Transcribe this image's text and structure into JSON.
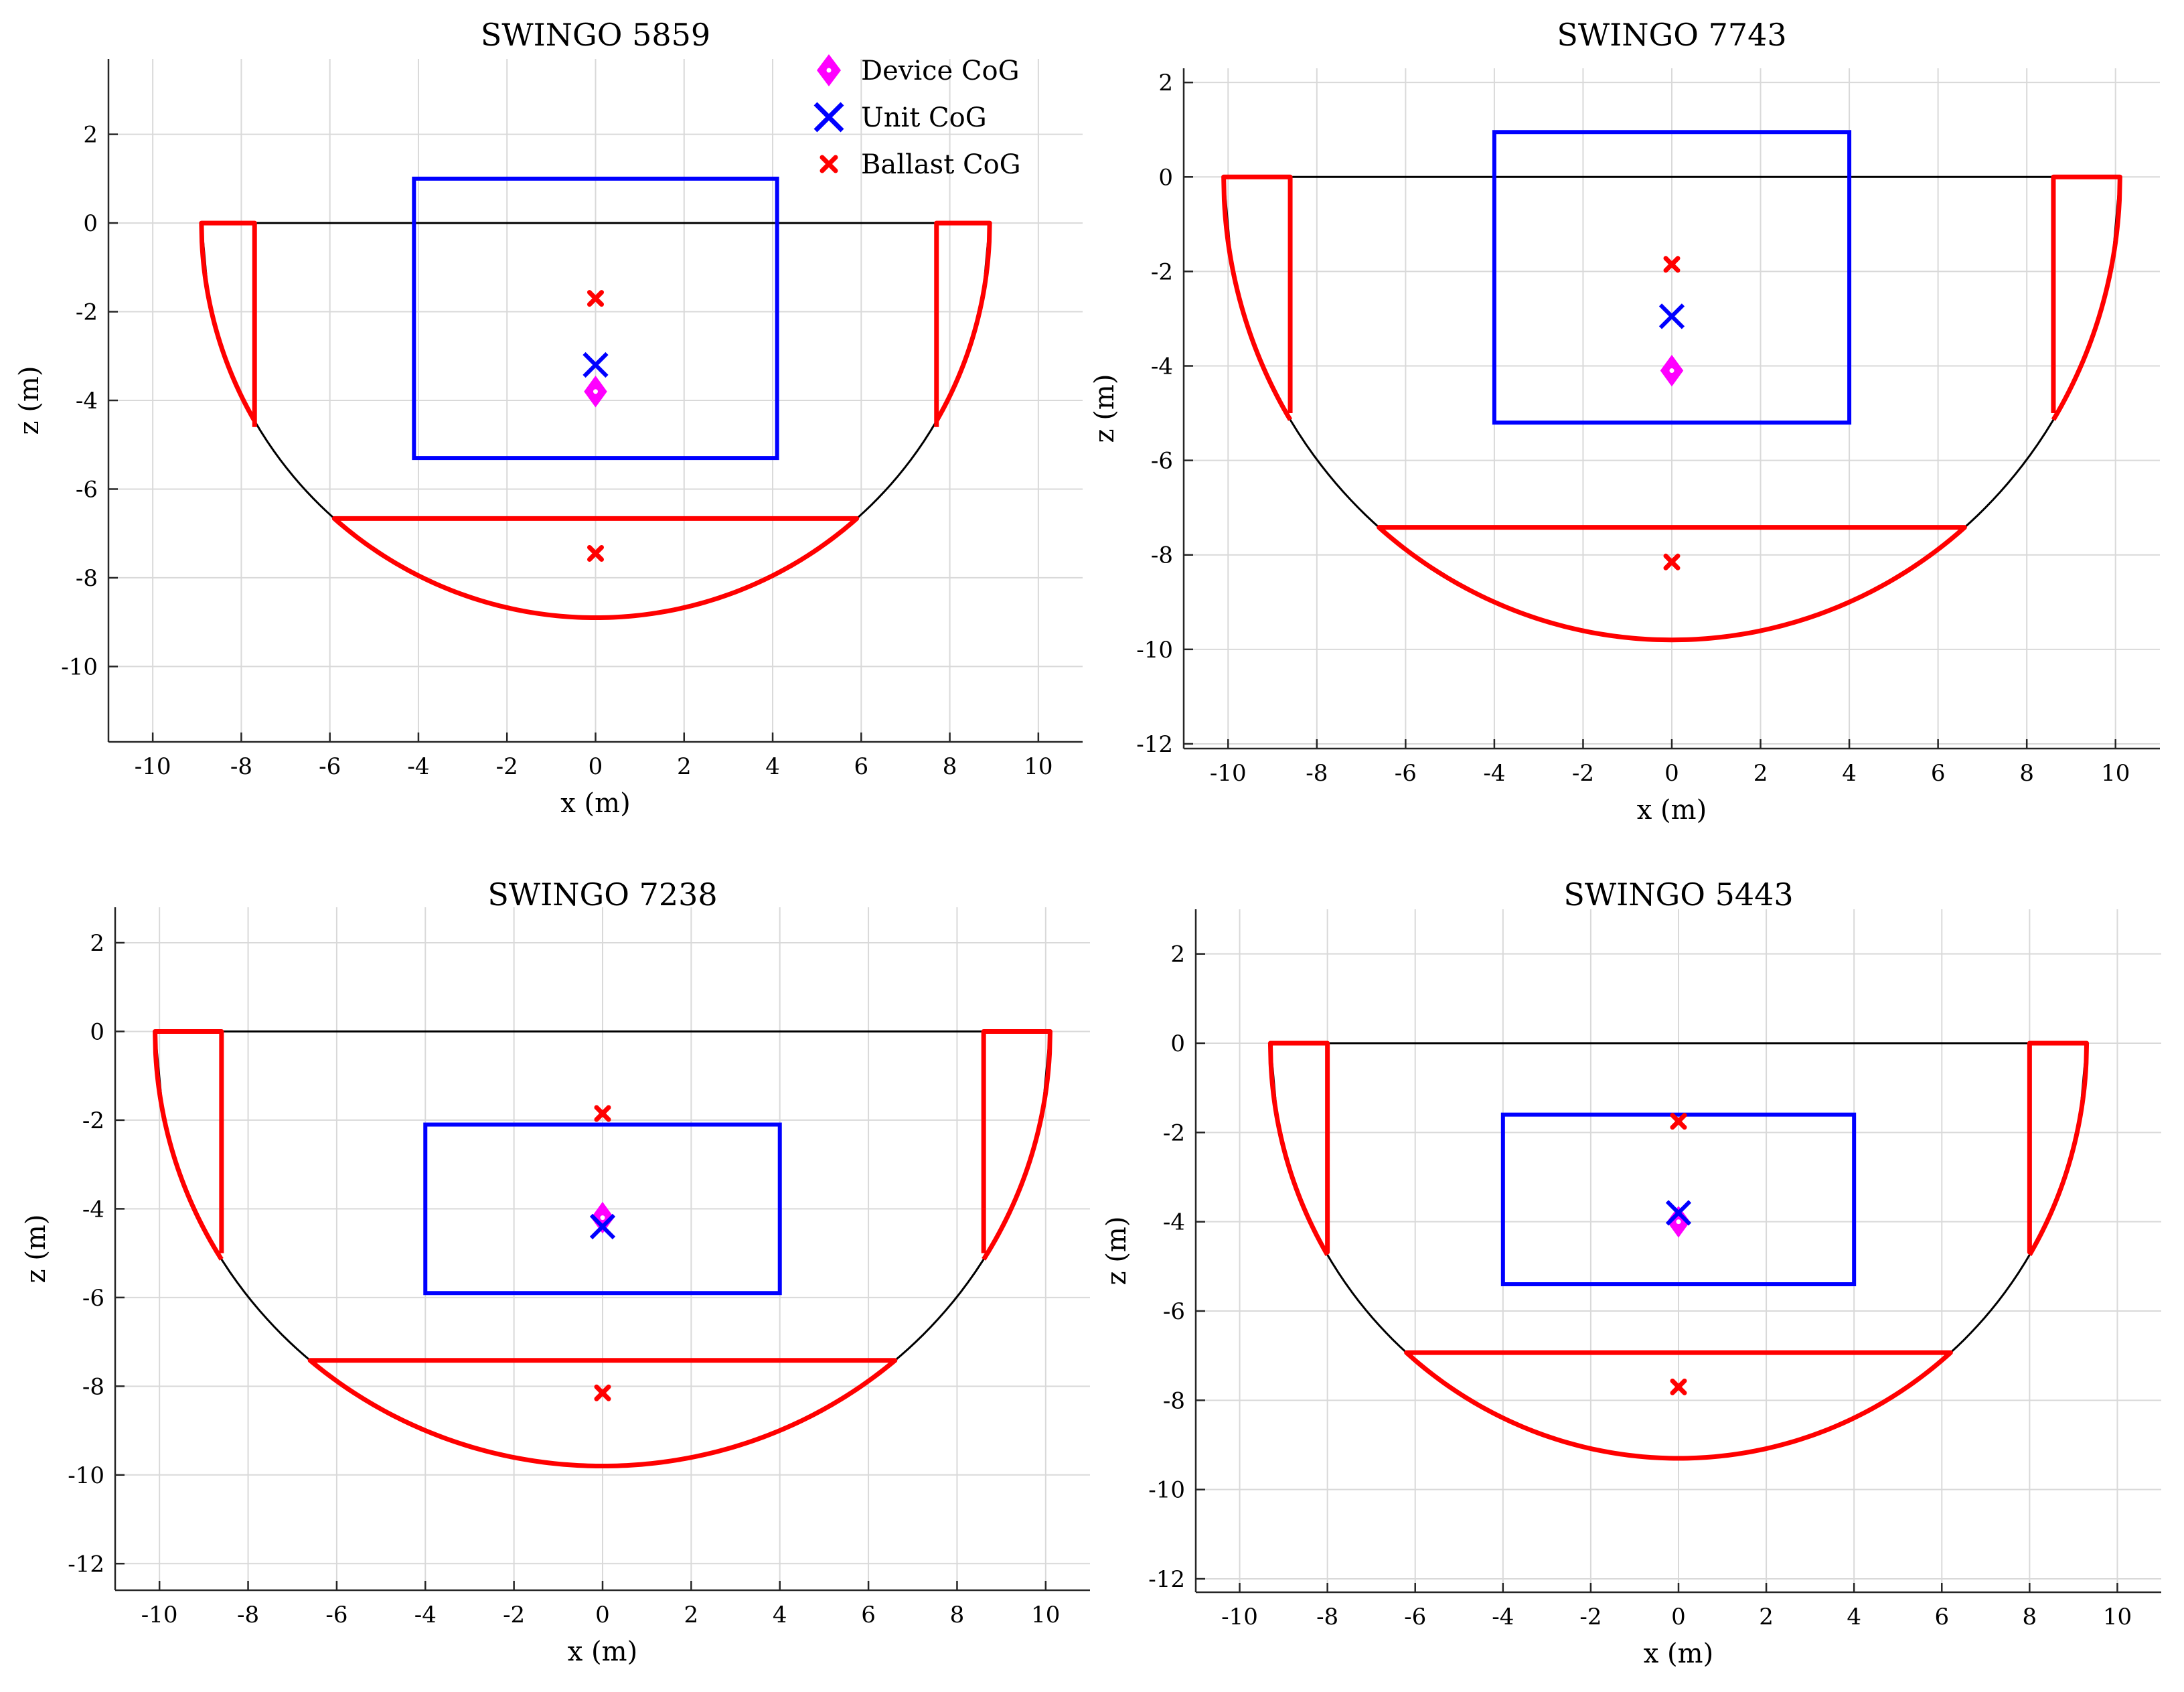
{
  "colors": {
    "hull": "#000000",
    "ballast": "#ff0000",
    "unit": "#0000ff",
    "device": "#ff00ff",
    "grid": "#d9d9d9"
  },
  "legend": {
    "location": "top-right of first panel",
    "entries": [
      {
        "label": "Device CoG",
        "marker": "diamond",
        "color": "#ff00ff"
      },
      {
        "label": "Unit CoG",
        "marker": "x",
        "color": "#0000ff"
      },
      {
        "label": "Ballast CoG",
        "marker": "x-small",
        "color": "#ff0000"
      }
    ]
  },
  "chart_data": [
    {
      "type": "line",
      "title": "SWINGO 5859",
      "xlabel": "x (m)",
      "ylabel": "z (m)",
      "xlim": [
        -11,
        11
      ],
      "ylim": [
        -11.7,
        3.7
      ],
      "xticks": [
        -10,
        -8,
        -6,
        -4,
        -2,
        0,
        2,
        4,
        6,
        8,
        10
      ],
      "yticks": [
        -10,
        -8,
        -6,
        -4,
        -2,
        0,
        2
      ],
      "grid": true,
      "hull": {
        "half_width": 8.9,
        "depth": 8.9
      },
      "side_tanks": {
        "x_outer": 8.9,
        "x_inner": 7.7,
        "z_bottom": -4.6
      },
      "bottom_ballast": {
        "z_top": -6.7,
        "half_width": 5.9
      },
      "unit_box": {
        "x": [
          -4.1,
          4.1
        ],
        "z": [
          -5.3,
          1.0
        ]
      },
      "device_cog": [
        0,
        -3.8
      ],
      "unit_cog": [
        0,
        -3.2
      ],
      "ballast_cog": [
        [
          0,
          -1.7
        ],
        [
          0,
          -7.45
        ]
      ]
    },
    {
      "type": "line",
      "title": "SWINGO 7743",
      "xlabel": "x (m)",
      "ylabel": "z (m)",
      "xlim": [
        -11,
        11
      ],
      "ylim": [
        -12.1,
        2.3
      ],
      "xticks": [
        -10,
        -8,
        -6,
        -4,
        -2,
        0,
        2,
        4,
        6,
        8,
        10
      ],
      "yticks": [
        -12,
        -10,
        -8,
        -6,
        -4,
        -2,
        0,
        2
      ],
      "grid": true,
      "hull": {
        "half_width": 10.1,
        "depth": 9.8
      },
      "side_tanks": {
        "x_outer": 10.1,
        "x_inner": 8.6,
        "z_bottom": -5.0
      },
      "bottom_ballast": {
        "z_top": -7.3,
        "half_width": 6.6
      },
      "unit_box": {
        "x": [
          -4.0,
          4.0
        ],
        "z": [
          -5.2,
          0.95
        ]
      },
      "device_cog": [
        0,
        -4.1
      ],
      "unit_cog": [
        0,
        -2.95
      ],
      "ballast_cog": [
        [
          0,
          -1.85
        ],
        [
          0,
          -8.15
        ]
      ]
    },
    {
      "type": "line",
      "title": "SWINGO 7238",
      "xlabel": "x (m)",
      "ylabel": "z (m)",
      "xlim": [
        -11,
        11
      ],
      "ylim": [
        -12.6,
        2.8
      ],
      "xticks": [
        -10,
        -8,
        -6,
        -4,
        -2,
        0,
        2,
        4,
        6,
        8,
        10
      ],
      "yticks": [
        -12,
        -10,
        -8,
        -6,
        -4,
        -2,
        0,
        2
      ],
      "grid": true,
      "hull": {
        "half_width": 10.1,
        "depth": 9.8
      },
      "side_tanks": {
        "x_outer": 10.1,
        "x_inner": 8.6,
        "z_bottom": -5.0
      },
      "bottom_ballast": {
        "z_top": -7.3,
        "half_width": 6.6
      },
      "unit_box": {
        "x": [
          -4.0,
          4.0
        ],
        "z": [
          -5.9,
          -2.1
        ]
      },
      "device_cog": [
        0,
        -4.2
      ],
      "unit_cog": [
        0,
        -4.4
      ],
      "ballast_cog": [
        [
          0,
          -1.85
        ],
        [
          0,
          -8.15
        ]
      ]
    },
    {
      "type": "line",
      "title": "SWINGO 5443",
      "xlabel": "x (m)",
      "ylabel": "z (m)",
      "xlim": [
        -11,
        11
      ],
      "ylim": [
        -12.3,
        3.0
      ],
      "xticks": [
        -10,
        -8,
        -6,
        -4,
        -2,
        0,
        2,
        4,
        6,
        8,
        10
      ],
      "yticks": [
        -12,
        -10,
        -8,
        -6,
        -4,
        -2,
        0,
        2
      ],
      "grid": true,
      "hull": {
        "half_width": 9.3,
        "depth": 9.3
      },
      "side_tanks": {
        "x_outer": 9.3,
        "x_inner": 8.0,
        "z_bottom": -4.7
      },
      "bottom_ballast": {
        "z_top": -6.9,
        "half_width": 6.2
      },
      "unit_box": {
        "x": [
          -4.0,
          4.0
        ],
        "z": [
          -5.4,
          -1.6
        ]
      },
      "device_cog": [
        0,
        -4.0
      ],
      "unit_cog": [
        0,
        -3.8
      ],
      "ballast_cog": [
        [
          0,
          -1.75
        ],
        [
          0,
          -7.7
        ]
      ]
    }
  ]
}
